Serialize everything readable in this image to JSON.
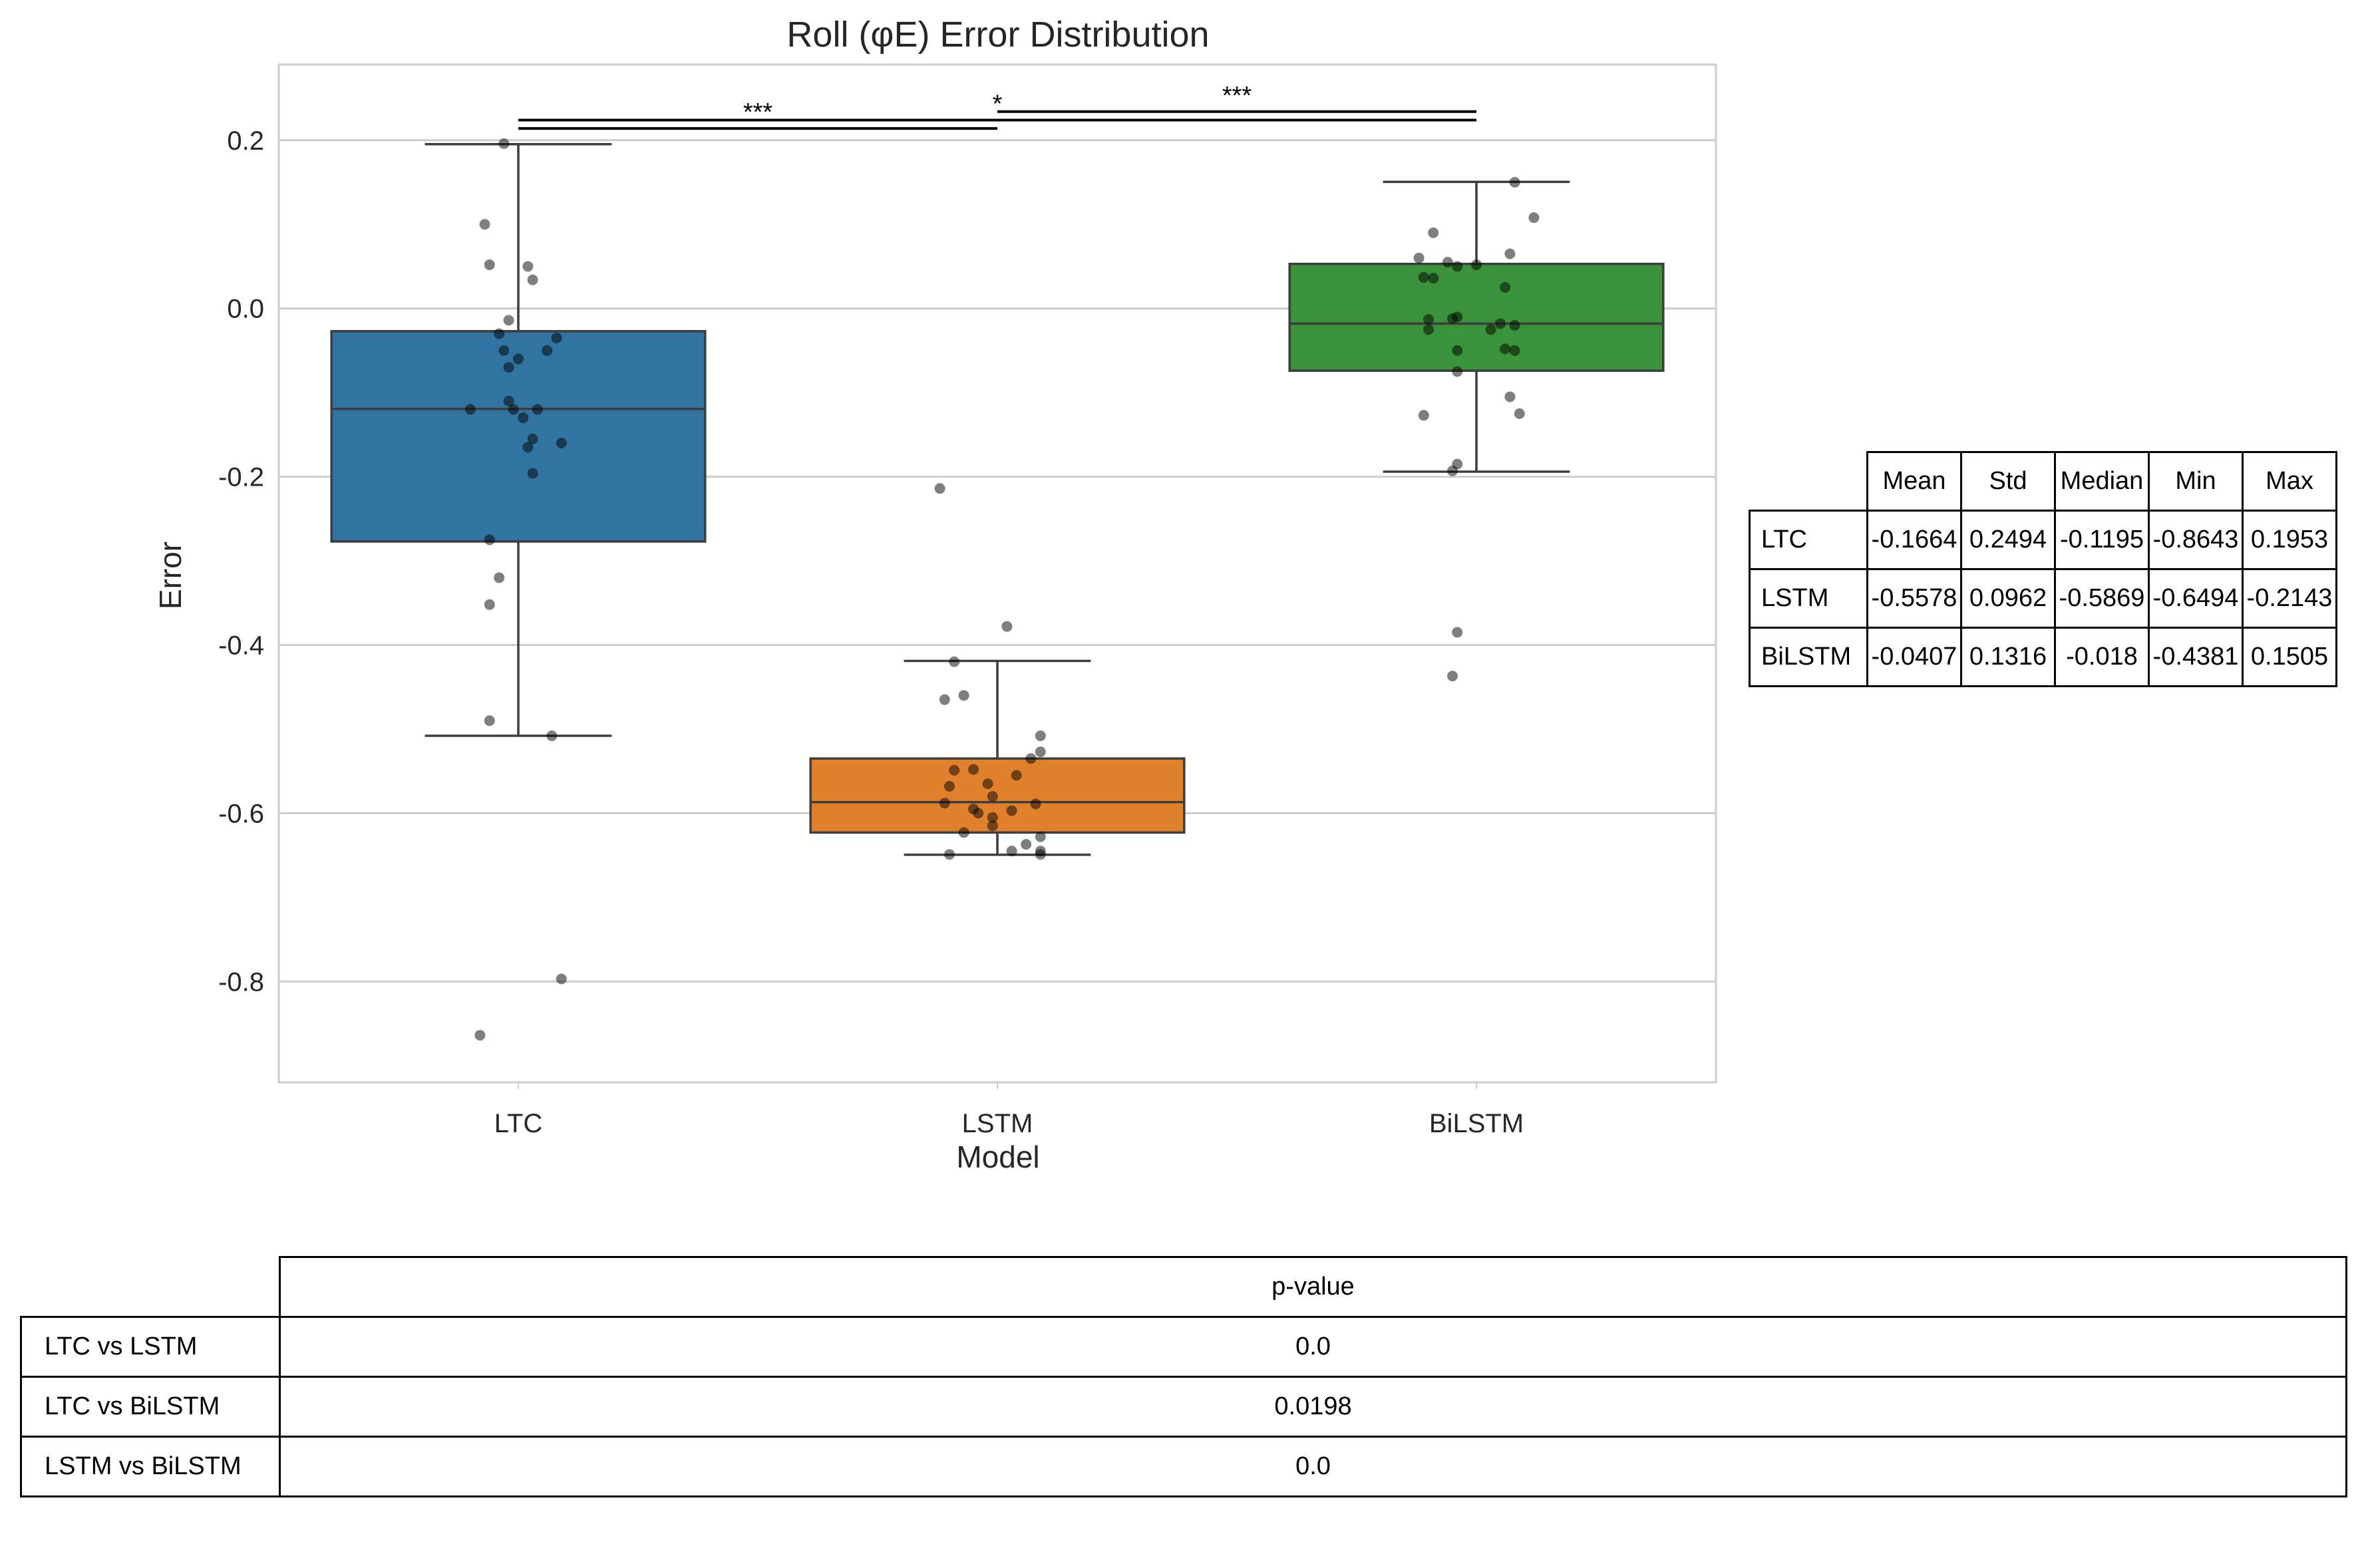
{
  "chart_data": {
    "type": "box",
    "title": "Roll (φE) Error Distribution",
    "xlabel": "Model",
    "ylabel": "Error",
    "categories": [
      "LTC",
      "LSTM",
      "BiLSTM"
    ],
    "ylim": [
      -0.92,
      0.29
    ],
    "yticks": [
      0.2,
      0.0,
      -0.2,
      -0.4,
      -0.6,
      -0.8
    ],
    "ytick_labels": [
      "0.2",
      "0.0",
      "-0.2",
      "-0.4",
      "-0.6",
      "-0.8"
    ],
    "grid": "horizontal",
    "boxes": [
      {
        "name": "LTC",
        "color": "#3274a1",
        "q1": -0.277,
        "median": -0.1195,
        "q3": -0.027,
        "whisker_low": -0.508,
        "whisker_high": 0.1953
      },
      {
        "name": "LSTM",
        "color": "#e1812c",
        "q1": -0.623,
        "median": -0.5869,
        "q3": -0.535,
        "whisker_low": -0.6494,
        "whisker_high": -0.419
      },
      {
        "name": "BiLSTM",
        "color": "#3a923a",
        "q1": -0.074,
        "median": -0.018,
        "q3": 0.053,
        "whisker_low": -0.194,
        "whisker_high": 0.1505
      }
    ],
    "points": [
      [
        [
          -0.03,
          0.196
        ],
        [
          -0.07,
          0.1
        ],
        [
          0.02,
          0.05
        ],
        [
          0.03,
          0.034
        ],
        [
          -0.06,
          0.052
        ],
        [
          -0.02,
          -0.014
        ],
        [
          -0.04,
          -0.03
        ],
        [
          0.08,
          -0.035
        ],
        [
          -0.03,
          -0.05
        ],
        [
          0.06,
          -0.05
        ],
        [
          0.0,
          -0.06
        ],
        [
          -0.02,
          -0.07
        ],
        [
          -0.02,
          -0.11
        ],
        [
          -0.01,
          -0.12
        ],
        [
          -0.1,
          -0.12
        ],
        [
          0.01,
          -0.13
        ],
        [
          0.09,
          -0.16
        ],
        [
          0.03,
          -0.155
        ],
        [
          0.02,
          -0.165
        ],
        [
          0.03,
          -0.196
        ],
        [
          -0.06,
          -0.275
        ],
        [
          -0.04,
          -0.32
        ],
        [
          -0.06,
          -0.352
        ],
        [
          -0.06,
          -0.49
        ],
        [
          0.07,
          -0.508
        ],
        [
          0.09,
          -0.797
        ],
        [
          -0.08,
          -0.864
        ],
        [
          0.04,
          -0.12
        ]
      ],
      [
        [
          -0.12,
          -0.214
        ],
        [
          0.02,
          -0.378
        ],
        [
          -0.09,
          -0.42
        ],
        [
          -0.11,
          -0.465
        ],
        [
          -0.07,
          -0.46
        ],
        [
          0.09,
          -0.508
        ],
        [
          0.09,
          -0.527
        ],
        [
          0.07,
          -0.535
        ],
        [
          0.04,
          -0.555
        ],
        [
          -0.09,
          -0.549
        ],
        [
          -0.05,
          -0.548
        ],
        [
          -0.02,
          -0.565
        ],
        [
          -0.1,
          -0.568
        ],
        [
          -0.01,
          -0.58
        ],
        [
          -0.11,
          -0.588
        ],
        [
          0.08,
          -0.589
        ],
        [
          -0.05,
          -0.595
        ],
        [
          0.03,
          -0.597
        ],
        [
          -0.04,
          -0.6
        ],
        [
          -0.01,
          -0.605
        ],
        [
          -0.01,
          -0.615
        ],
        [
          -0.07,
          -0.623
        ],
        [
          0.09,
          -0.628
        ],
        [
          0.06,
          -0.637
        ],
        [
          0.03,
          -0.645
        ],
        [
          0.09,
          -0.645
        ],
        [
          0.09,
          -0.649
        ],
        [
          -0.1,
          -0.649
        ]
      ],
      [
        [
          0.08,
          0.15
        ],
        [
          0.12,
          0.108
        ],
        [
          -0.09,
          0.09
        ],
        [
          0.07,
          0.065
        ],
        [
          -0.12,
          0.06
        ],
        [
          -0.06,
          0.055
        ],
        [
          0.0,
          0.052
        ],
        [
          -0.04,
          0.05
        ],
        [
          -0.11,
          0.037
        ],
        [
          -0.09,
          0.036
        ],
        [
          0.06,
          0.025
        ],
        [
          -0.04,
          -0.01
        ],
        [
          -0.05,
          -0.012
        ],
        [
          -0.1,
          -0.013
        ],
        [
          0.05,
          -0.018
        ],
        [
          0.08,
          -0.02
        ],
        [
          0.03,
          -0.025
        ],
        [
          -0.1,
          -0.025
        ],
        [
          0.06,
          -0.048
        ],
        [
          0.08,
          -0.05
        ],
        [
          -0.04,
          -0.05
        ],
        [
          -0.04,
          -0.075
        ],
        [
          0.07,
          -0.105
        ],
        [
          -0.11,
          -0.127
        ],
        [
          0.09,
          -0.125
        ],
        [
          -0.04,
          -0.185
        ],
        [
          -0.05,
          -0.193
        ],
        [
          -0.04,
          -0.385
        ],
        [
          -0.05,
          -0.437
        ]
      ]
    ],
    "significance": [
      {
        "pair": [
          "LTC",
          "LSTM"
        ],
        "label": "***",
        "y": 0.214
      },
      {
        "pair": [
          "LSTM",
          "BiLSTM"
        ],
        "label": "***",
        "y": 0.234
      },
      {
        "pair": [
          "LTC",
          "BiLSTM"
        ],
        "label": "*",
        "y": 0.224
      }
    ]
  },
  "stats_table": {
    "headers": [
      "Mean",
      "Std",
      "Median",
      "Min",
      "Max"
    ],
    "rows": [
      {
        "label": "LTC",
        "values": [
          "-0.1664",
          "0.2494",
          "-0.1195",
          "-0.8643",
          "0.1953"
        ]
      },
      {
        "label": "LSTM",
        "values": [
          "-0.5578",
          "0.0962",
          "-0.5869",
          "-0.6494",
          "-0.2143"
        ]
      },
      {
        "label": "BiLSTM",
        "values": [
          "-0.0407",
          "0.1316",
          "-0.018",
          "-0.4381",
          "0.1505"
        ]
      }
    ]
  },
  "pvalue_table": {
    "header": "p-value",
    "rows": [
      {
        "label": "LTC vs LSTM",
        "value": "0.0"
      },
      {
        "label": "LTC vs BiLSTM",
        "value": "0.0198"
      },
      {
        "label": "LSTM vs BiLSTM",
        "value": "0.0"
      }
    ]
  }
}
